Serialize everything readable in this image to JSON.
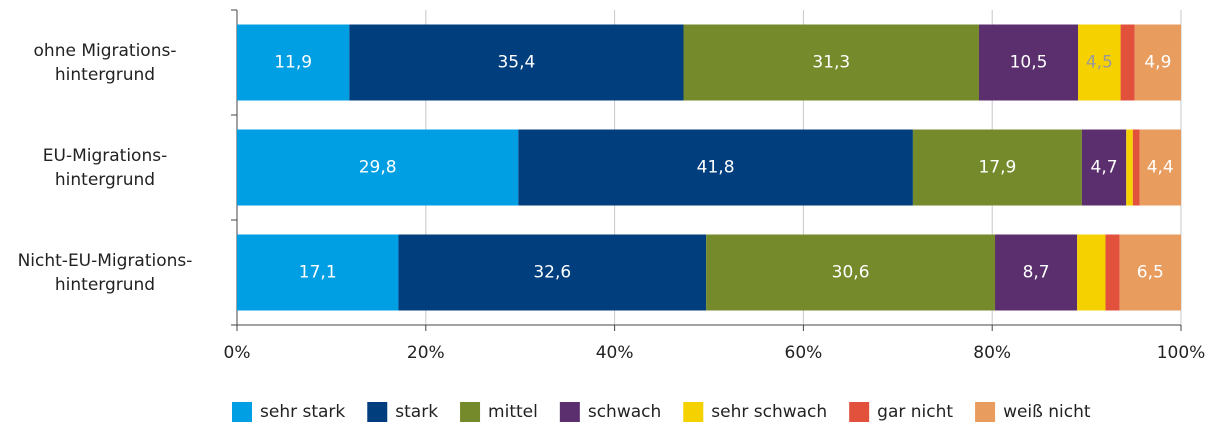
{
  "chart_data": {
    "type": "stacked_bar_horizontal",
    "categories": [
      "ohne Migrations-\nhintergrund",
      "EU-Migrations-\nhintergrund",
      "Nicht-EU-Migrations-\nhintergrund"
    ],
    "series": [
      {
        "name": "sehr stark",
        "color": "#009fe3",
        "values": [
          11.9,
          29.8,
          17.1
        ],
        "value_labels": [
          "11,9",
          "29,8",
          "17,1"
        ]
      },
      {
        "name": "stark",
        "color": "#003e7e",
        "values": [
          35.4,
          41.8,
          32.6
        ],
        "value_labels": [
          "35,4",
          "41,8",
          "32,6"
        ]
      },
      {
        "name": "mittel",
        "color": "#758a2b",
        "values": [
          31.3,
          17.9,
          30.6
        ],
        "value_labels": [
          "31,3",
          "17,9",
          "30,6"
        ]
      },
      {
        "name": "schwach",
        "color": "#5b2e6d",
        "values": [
          10.5,
          4.7,
          8.7
        ],
        "value_labels": [
          "10,5",
          "4,7",
          "8,7"
        ]
      },
      {
        "name": "sehr schwach",
        "color": "#f6d100",
        "values": [
          4.5,
          0.7,
          3.0
        ],
        "value_labels": [
          "4,5",
          null,
          null
        ]
      },
      {
        "name": "gar nicht",
        "color": "#e2513c",
        "values": [
          1.5,
          0.7,
          1.5
        ],
        "value_labels": [
          null,
          null,
          null
        ]
      },
      {
        "name": "weiß nicht",
        "color": "#e89c5d",
        "values": [
          4.9,
          4.4,
          6.5
        ],
        "value_labels": [
          "4,9",
          "4,4",
          "6,5"
        ]
      }
    ],
    "xlim": [
      0,
      100
    ],
    "xticks": [
      {
        "value": 0,
        "label": "0%"
      },
      {
        "value": 20,
        "label": "20%"
      },
      {
        "value": 40,
        "label": "40%"
      },
      {
        "value": 60,
        "label": "60%"
      },
      {
        "value": 80,
        "label": "80%"
      },
      {
        "value": 100,
        "label": "100%"
      }
    ],
    "grid": true,
    "legend": "bottom"
  }
}
